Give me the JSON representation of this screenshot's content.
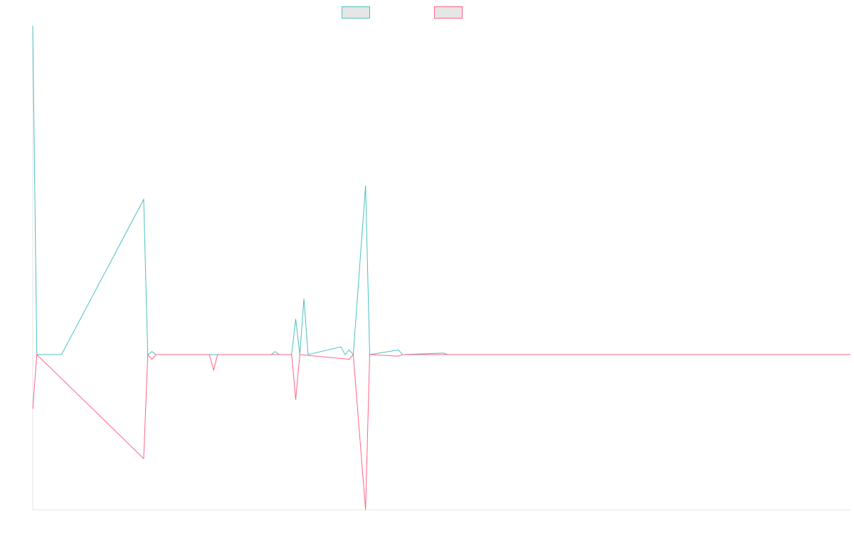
{
  "chart_data": {
    "type": "line",
    "title": "",
    "xlabel": "",
    "ylabel": "",
    "grid": false,
    "legend_position": "top-center",
    "x_count": 200,
    "ylim": [
      -1.0,
      2.12
    ],
    "series": [
      {
        "key": "series_a",
        "name": "",
        "color": "#4bc0c0",
        "points": [
          [
            0,
            2.12
          ],
          [
            1,
            0.0
          ],
          [
            7,
            0.0
          ],
          [
            27,
            1.0
          ],
          [
            28,
            0.0
          ],
          [
            29,
            0.02
          ],
          [
            30,
            0.0
          ],
          [
            58,
            0.0
          ],
          [
            59,
            0.02
          ],
          [
            60,
            0.0
          ],
          [
            63,
            0.0
          ],
          [
            64,
            0.23
          ],
          [
            65,
            0.0
          ],
          [
            66,
            0.36
          ],
          [
            67,
            0.0
          ],
          [
            75,
            0.05
          ],
          [
            76,
            0.0
          ],
          [
            77,
            0.03
          ],
          [
            78,
            0.0
          ],
          [
            81,
            1.09
          ],
          [
            82,
            0.0
          ],
          [
            89,
            0.03
          ],
          [
            90,
            0.0
          ],
          [
            100,
            0.01
          ],
          [
            101,
            0.0
          ],
          [
            199,
            0.0
          ]
        ]
      },
      {
        "key": "series_b",
        "name": "",
        "color": "#ff6384",
        "points": [
          [
            0,
            -0.35
          ],
          [
            1,
            0.0
          ],
          [
            27,
            -0.67
          ],
          [
            28,
            0.0
          ],
          [
            29,
            -0.03
          ],
          [
            30,
            0.0
          ],
          [
            43,
            0.0
          ],
          [
            44,
            -0.1
          ],
          [
            45,
            0.0
          ],
          [
            63,
            0.0
          ],
          [
            64,
            -0.29
          ],
          [
            65,
            0.0
          ],
          [
            77,
            -0.03
          ],
          [
            78,
            0.0
          ],
          [
            81,
            -1.0
          ],
          [
            82,
            0.0
          ],
          [
            89,
            -0.01
          ],
          [
            90,
            0.0
          ],
          [
            199,
            0.0
          ]
        ]
      }
    ]
  }
}
